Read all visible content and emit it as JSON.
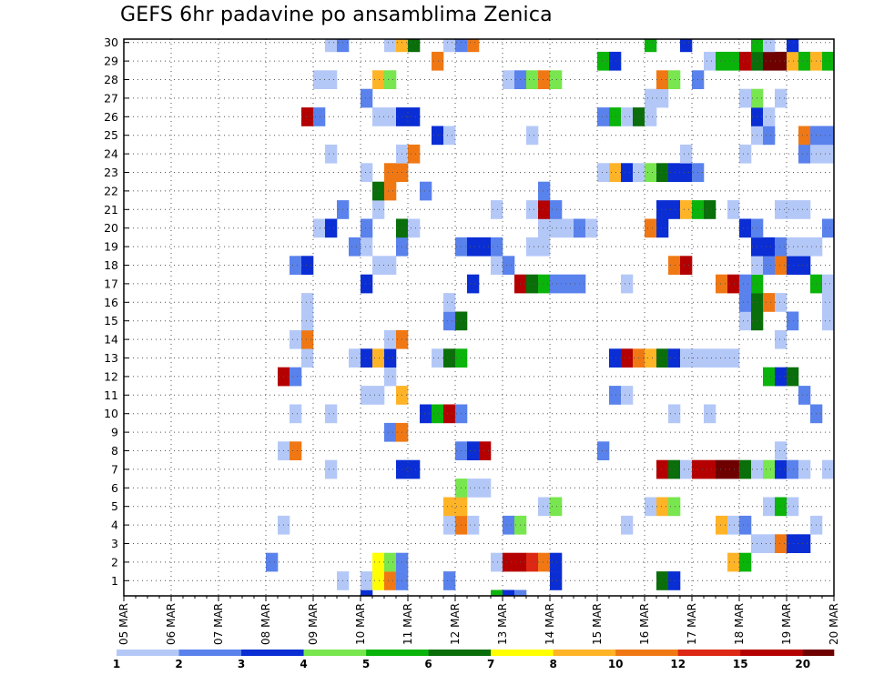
{
  "chart_data": {
    "type": "heatmap",
    "title": "GEFS 6hr padavine po ansamblima Zenica",
    "x_tick_labels": [
      "05 MAR",
      "06 MAR",
      "07 MAR",
      "08 MAR",
      "09 MAR",
      "10 MAR",
      "11 MAR",
      "12 MAR",
      "13 MAR",
      "14 MAR",
      "15 MAR",
      "16 MAR",
      "17 MAR",
      "18 MAR",
      "19 MAR",
      "20 MAR"
    ],
    "y_tick_labels": [
      "1",
      "2",
      "3",
      "4",
      "5",
      "6",
      "7",
      "8",
      "9",
      "10",
      "11",
      "12",
      "13",
      "14",
      "15",
      "16",
      "17",
      "18",
      "19",
      "20",
      "21",
      "22",
      "23",
      "24",
      "25",
      "26",
      "27",
      "28",
      "29",
      "30"
    ],
    "xlim": [
      0,
      60
    ],
    "ylim": [
      0,
      30
    ],
    "grid": true,
    "colorbar": {
      "labels": [
        "1",
        "2",
        "3",
        "4",
        "5",
        "6",
        "7",
        "8",
        "10",
        "12",
        "15",
        "20"
      ],
      "colors": [
        "#b4c8f8",
        "#5a82ec",
        "#0a2ed4",
        "#78e64e",
        "#0ab40a",
        "#0a6e0a",
        "#ffff00",
        "#ffb428",
        "#f07814",
        "#dc2814",
        "#b40000",
        "#6e0000"
      ]
    },
    "cells": [
      [
        20,
        -1,
        3
      ],
      [
        31,
        -1,
        5
      ],
      [
        32,
        -1,
        3
      ],
      [
        33,
        -1,
        2
      ],
      [
        18,
        0,
        1
      ],
      [
        20,
        0,
        1
      ],
      [
        21,
        0,
        7
      ],
      [
        22,
        0,
        10
      ],
      [
        23,
        0,
        2
      ],
      [
        27,
        0,
        2
      ],
      [
        36,
        0,
        3
      ],
      [
        45,
        0,
        6
      ],
      [
        46,
        0,
        3
      ],
      [
        12,
        1,
        2
      ],
      [
        21,
        1,
        7
      ],
      [
        22,
        1,
        4
      ],
      [
        23,
        1,
        2
      ],
      [
        31,
        1,
        1
      ],
      [
        32,
        1,
        15
      ],
      [
        33,
        1,
        15
      ],
      [
        34,
        1,
        12
      ],
      [
        35,
        1,
        10
      ],
      [
        36,
        1,
        3
      ],
      [
        51,
        1,
        8
      ],
      [
        52,
        1,
        5
      ],
      [
        53,
        2,
        1
      ],
      [
        54,
        2,
        1
      ],
      [
        55,
        2,
        10
      ],
      [
        56,
        2,
        3
      ],
      [
        57,
        2,
        3
      ],
      [
        13,
        3,
        1
      ],
      [
        27,
        3,
        1
      ],
      [
        28,
        3,
        10
      ],
      [
        29,
        3,
        1
      ],
      [
        32,
        3,
        2
      ],
      [
        33,
        3,
        4
      ],
      [
        42,
        3,
        1
      ],
      [
        50,
        3,
        8
      ],
      [
        51,
        3,
        1
      ],
      [
        52,
        3,
        2
      ],
      [
        58,
        3,
        1
      ],
      [
        27,
        4,
        8
      ],
      [
        28,
        4,
        8
      ],
      [
        35,
        4,
        1
      ],
      [
        36,
        4,
        4
      ],
      [
        44,
        4,
        1
      ],
      [
        45,
        4,
        8
      ],
      [
        46,
        4,
        4
      ],
      [
        54,
        4,
        1
      ],
      [
        55,
        4,
        5
      ],
      [
        56,
        4,
        1
      ],
      [
        28,
        5,
        4
      ],
      [
        29,
        5,
        1
      ],
      [
        30,
        5,
        1
      ],
      [
        17,
        6,
        1
      ],
      [
        23,
        6,
        3
      ],
      [
        24,
        6,
        3
      ],
      [
        45,
        6,
        15
      ],
      [
        46,
        6,
        6
      ],
      [
        47,
        6,
        1
      ],
      [
        48,
        6,
        15
      ],
      [
        49,
        6,
        15
      ],
      [
        50,
        6,
        20
      ],
      [
        51,
        6,
        20
      ],
      [
        52,
        6,
        6
      ],
      [
        53,
        6,
        1
      ],
      [
        54,
        6,
        4
      ],
      [
        55,
        6,
        3
      ],
      [
        56,
        6,
        2
      ],
      [
        57,
        6,
        1
      ],
      [
        59,
        6,
        1
      ],
      [
        13,
        7,
        1
      ],
      [
        14,
        7,
        10
      ],
      [
        28,
        7,
        2
      ],
      [
        29,
        7,
        3
      ],
      [
        30,
        7,
        15
      ],
      [
        40,
        7,
        2
      ],
      [
        55,
        7,
        1
      ],
      [
        22,
        8,
        2
      ],
      [
        23,
        8,
        10
      ],
      [
        14,
        9,
        1
      ],
      [
        17,
        9,
        1
      ],
      [
        25,
        9,
        3
      ],
      [
        26,
        9,
        5
      ],
      [
        27,
        9,
        15
      ],
      [
        28,
        9,
        2
      ],
      [
        46,
        9,
        1
      ],
      [
        49,
        9,
        1
      ],
      [
        58,
        9,
        2
      ],
      [
        20,
        10,
        1
      ],
      [
        21,
        10,
        1
      ],
      [
        23,
        10,
        8
      ],
      [
        41,
        10,
        2
      ],
      [
        42,
        10,
        1
      ],
      [
        57,
        10,
        2
      ],
      [
        13,
        11,
        15
      ],
      [
        14,
        11,
        2
      ],
      [
        22,
        11,
        1
      ],
      [
        54,
        11,
        5
      ],
      [
        55,
        11,
        3
      ],
      [
        56,
        11,
        6
      ],
      [
        15,
        12,
        1
      ],
      [
        19,
        12,
        1
      ],
      [
        20,
        12,
        3
      ],
      [
        21,
        12,
        8
      ],
      [
        22,
        12,
        3
      ],
      [
        26,
        12,
        1
      ],
      [
        27,
        12,
        6
      ],
      [
        28,
        12,
        5
      ],
      [
        41,
        12,
        3
      ],
      [
        42,
        12,
        15
      ],
      [
        43,
        12,
        10
      ],
      [
        44,
        12,
        8
      ],
      [
        45,
        12,
        6
      ],
      [
        46,
        12,
        3
      ],
      [
        47,
        12,
        1
      ],
      [
        48,
        12,
        1
      ],
      [
        49,
        12,
        1
      ],
      [
        50,
        12,
        1
      ],
      [
        51,
        12,
        1
      ],
      [
        14,
        13,
        1
      ],
      [
        15,
        13,
        10
      ],
      [
        22,
        13,
        1
      ],
      [
        23,
        13,
        10
      ],
      [
        55,
        13,
        1
      ],
      [
        15,
        14,
        1
      ],
      [
        27,
        14,
        2
      ],
      [
        28,
        14,
        6
      ],
      [
        52,
        14,
        1
      ],
      [
        53,
        14,
        6
      ],
      [
        56,
        14,
        2
      ],
      [
        59,
        14,
        1
      ],
      [
        15,
        15,
        1
      ],
      [
        27,
        15,
        1
      ],
      [
        52,
        15,
        2
      ],
      [
        53,
        15,
        6
      ],
      [
        54,
        15,
        10
      ],
      [
        55,
        15,
        1
      ],
      [
        59,
        15,
        1
      ],
      [
        20,
        16,
        3
      ],
      [
        29,
        16,
        3
      ],
      [
        33,
        16,
        15
      ],
      [
        34,
        16,
        6
      ],
      [
        35,
        16,
        5
      ],
      [
        36,
        16,
        2
      ],
      [
        37,
        16,
        2
      ],
      [
        38,
        16,
        2
      ],
      [
        42,
        16,
        1
      ],
      [
        50,
        16,
        10
      ],
      [
        51,
        16,
        15
      ],
      [
        52,
        16,
        2
      ],
      [
        53,
        16,
        5
      ],
      [
        58,
        16,
        5
      ],
      [
        59,
        16,
        1
      ],
      [
        14,
        17,
        2
      ],
      [
        15,
        17,
        3
      ],
      [
        21,
        17,
        1
      ],
      [
        22,
        17,
        1
      ],
      [
        31,
        17,
        1
      ],
      [
        32,
        17,
        2
      ],
      [
        46,
        17,
        10
      ],
      [
        47,
        17,
        15
      ],
      [
        53,
        17,
        1
      ],
      [
        54,
        17,
        2
      ],
      [
        55,
        17,
        10
      ],
      [
        56,
        17,
        3
      ],
      [
        57,
        17,
        3
      ],
      [
        19,
        18,
        2
      ],
      [
        20,
        18,
        1
      ],
      [
        23,
        18,
        2
      ],
      [
        28,
        18,
        2
      ],
      [
        29,
        18,
        3
      ],
      [
        30,
        18,
        3
      ],
      [
        31,
        18,
        2
      ],
      [
        34,
        18,
        1
      ],
      [
        35,
        18,
        1
      ],
      [
        53,
        18,
        3
      ],
      [
        54,
        18,
        3
      ],
      [
        55,
        18,
        2
      ],
      [
        56,
        18,
        1
      ],
      [
        57,
        18,
        1
      ],
      [
        58,
        18,
        1
      ],
      [
        16,
        19,
        1
      ],
      [
        17,
        19,
        3
      ],
      [
        20,
        19,
        2
      ],
      [
        23,
        19,
        6
      ],
      [
        24,
        19,
        1
      ],
      [
        35,
        19,
        1
      ],
      [
        36,
        19,
        1
      ],
      [
        37,
        19,
        1
      ],
      [
        38,
        19,
        2
      ],
      [
        39,
        19,
        1
      ],
      [
        44,
        19,
        10
      ],
      [
        45,
        19,
        3
      ],
      [
        52,
        19,
        3
      ],
      [
        53,
        19,
        2
      ],
      [
        59,
        19,
        2
      ],
      [
        18,
        20,
        2
      ],
      [
        21,
        20,
        1
      ],
      [
        31,
        20,
        1
      ],
      [
        34,
        20,
        1
      ],
      [
        35,
        20,
        15
      ],
      [
        36,
        20,
        2
      ],
      [
        45,
        20,
        3
      ],
      [
        46,
        20,
        3
      ],
      [
        47,
        20,
        8
      ],
      [
        48,
        20,
        5
      ],
      [
        49,
        20,
        6
      ],
      [
        51,
        20,
        1
      ],
      [
        55,
        20,
        1
      ],
      [
        56,
        20,
        1
      ],
      [
        57,
        20,
        1
      ],
      [
        21,
        21,
        6
      ],
      [
        22,
        21,
        10
      ],
      [
        25,
        21,
        2
      ],
      [
        35,
        21,
        2
      ],
      [
        20,
        22,
        1
      ],
      [
        22,
        22,
        10
      ],
      [
        23,
        22,
        10
      ],
      [
        40,
        22,
        1
      ],
      [
        41,
        22,
        8
      ],
      [
        42,
        22,
        3
      ],
      [
        43,
        22,
        1
      ],
      [
        44,
        22,
        4
      ],
      [
        45,
        22,
        6
      ],
      [
        46,
        22,
        3
      ],
      [
        47,
        22,
        3
      ],
      [
        48,
        22,
        2
      ],
      [
        17,
        23,
        1
      ],
      [
        23,
        23,
        1
      ],
      [
        24,
        23,
        10
      ],
      [
        47,
        23,
        1
      ],
      [
        52,
        23,
        1
      ],
      [
        57,
        23,
        2
      ],
      [
        58,
        23,
        1
      ],
      [
        59,
        23,
        1
      ],
      [
        26,
        24,
        3
      ],
      [
        27,
        24,
        1
      ],
      [
        34,
        24,
        1
      ],
      [
        53,
        24,
        1
      ],
      [
        54,
        24,
        2
      ],
      [
        57,
        24,
        10
      ],
      [
        58,
        24,
        2
      ],
      [
        59,
        24,
        2
      ],
      [
        15,
        25,
        15
      ],
      [
        16,
        25,
        2
      ],
      [
        21,
        25,
        1
      ],
      [
        22,
        25,
        1
      ],
      [
        23,
        25,
        3
      ],
      [
        24,
        25,
        3
      ],
      [
        40,
        25,
        2
      ],
      [
        41,
        25,
        5
      ],
      [
        42,
        25,
        1
      ],
      [
        43,
        25,
        6
      ],
      [
        44,
        25,
        1
      ],
      [
        53,
        25,
        3
      ],
      [
        54,
        25,
        1
      ],
      [
        20,
        26,
        2
      ],
      [
        44,
        26,
        1
      ],
      [
        45,
        26,
        1
      ],
      [
        52,
        26,
        1
      ],
      [
        53,
        26,
        4
      ],
      [
        55,
        26,
        1
      ],
      [
        17,
        27,
        1
      ],
      [
        16,
        27,
        1
      ],
      [
        21,
        27,
        8
      ],
      [
        22,
        27,
        4
      ],
      [
        32,
        27,
        1
      ],
      [
        33,
        27,
        2
      ],
      [
        34,
        27,
        4
      ],
      [
        35,
        27,
        10
      ],
      [
        36,
        27,
        4
      ],
      [
        45,
        27,
        10
      ],
      [
        46,
        27,
        4
      ],
      [
        48,
        27,
        2
      ],
      [
        26,
        28,
        10
      ],
      [
        40,
        28,
        5
      ],
      [
        41,
        28,
        3
      ],
      [
        49,
        28,
        1
      ],
      [
        50,
        28,
        5
      ],
      [
        51,
        28,
        5
      ],
      [
        52,
        28,
        15
      ],
      [
        53,
        28,
        6
      ],
      [
        54,
        28,
        20
      ],
      [
        55,
        28,
        20
      ],
      [
        56,
        28,
        8
      ],
      [
        57,
        28,
        5
      ],
      [
        58,
        28,
        8
      ],
      [
        59,
        28,
        5
      ],
      [
        17,
        29,
        1
      ],
      [
        18,
        29,
        2
      ],
      [
        22,
        29,
        1
      ],
      [
        23,
        29,
        8
      ],
      [
        24,
        29,
        6
      ],
      [
        27,
        29,
        1
      ],
      [
        28,
        29,
        2
      ],
      [
        29,
        29,
        10
      ],
      [
        44,
        29,
        5
      ],
      [
        47,
        29,
        3
      ],
      [
        53,
        29,
        5
      ],
      [
        54,
        29,
        1
      ],
      [
        56,
        29,
        3
      ]
    ]
  }
}
